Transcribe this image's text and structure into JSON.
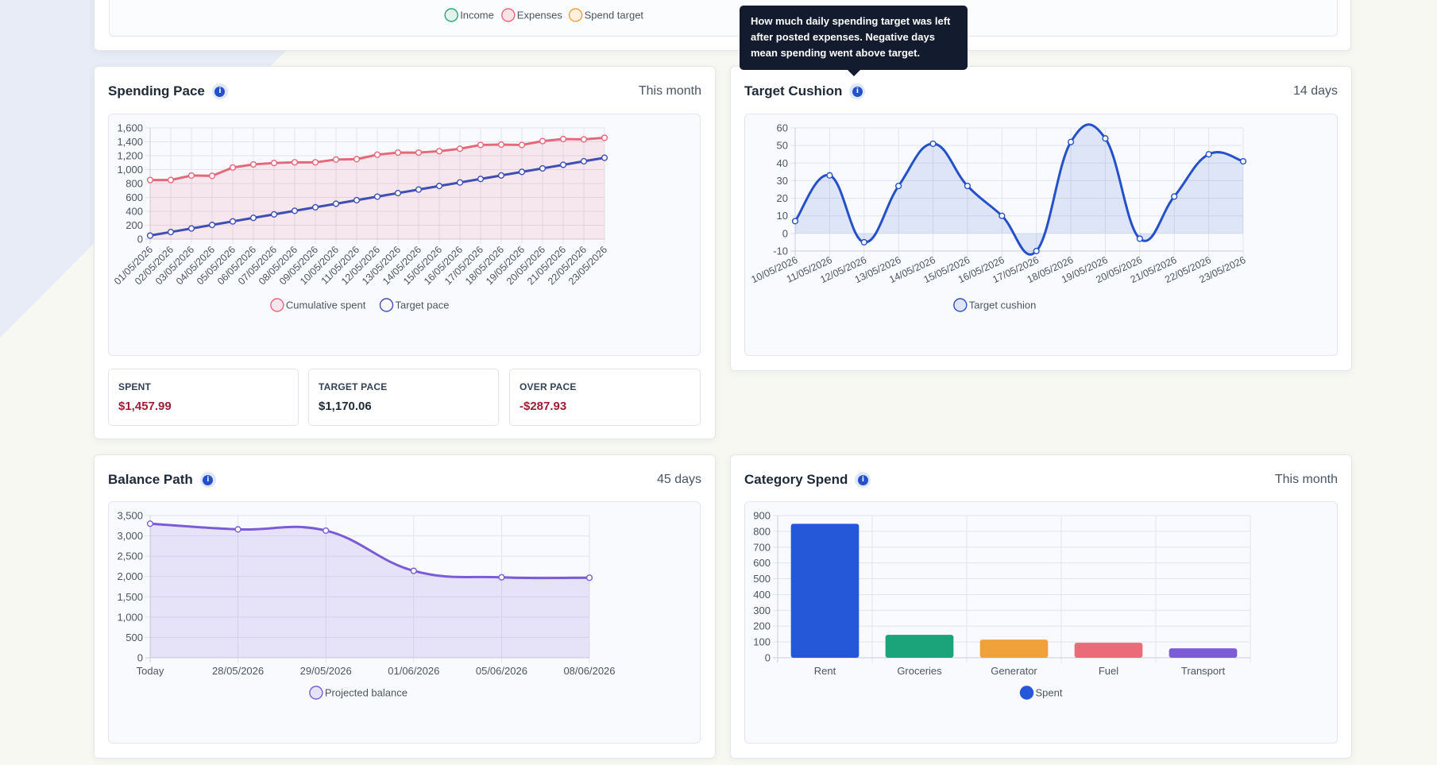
{
  "top_legend": [
    {
      "label": "Income",
      "color": "#2aa57a",
      "fill": "#e3f4ec"
    },
    {
      "label": "Expenses",
      "color": "#e5687a",
      "fill": "#fbe4e8"
    },
    {
      "label": "Spend target",
      "color": "#f0a23a",
      "fill": "#fdf0dd"
    }
  ],
  "tooltip": {
    "lines": [
      "How much daily spending target was left",
      "after posted expenses. Negative days",
      "mean spending went above target."
    ]
  },
  "spending_pace": {
    "title": "Spending Pace",
    "period": "This month",
    "info_icon": "info-icon",
    "stats": [
      {
        "label": "SPENT",
        "value": "$1,457.99",
        "color": "#9f1d35"
      },
      {
        "label": "TARGET PACE",
        "value": "$1,170.06",
        "color": "#1f2937"
      },
      {
        "label": "OVER PACE",
        "value": "-$287.93",
        "color": "#9f1d35"
      }
    ]
  },
  "target_cushion": {
    "title": "Target Cushion",
    "period": "14 days",
    "info_icon": "info-icon"
  },
  "balance_path": {
    "title": "Balance Path",
    "period": "45 days",
    "info_icon": "info-icon"
  },
  "category_spend": {
    "title": "Category Spend",
    "period": "This month",
    "info_icon": "info-icon"
  },
  "chart_data": [
    {
      "id": "spending-pace",
      "type": "line",
      "x": [
        "01/05/2026",
        "02/05/2026",
        "03/05/2026",
        "04/05/2026",
        "05/05/2026",
        "06/05/2026",
        "07/05/2026",
        "08/05/2026",
        "09/05/2026",
        "10/05/2026",
        "11/05/2026",
        "12/05/2026",
        "13/05/2026",
        "14/05/2026",
        "15/05/2026",
        "16/05/2026",
        "17/05/2026",
        "18/05/2026",
        "19/05/2026",
        "20/05/2026",
        "21/05/2026",
        "22/05/2026",
        "23/05/2026"
      ],
      "series": [
        {
          "name": "Cumulative spent",
          "color": "#e5687a",
          "fill": "rgba(229,104,122,0.13)",
          "values": [
            850,
            850,
            915,
            910,
            1030,
            1075,
            1095,
            1105,
            1105,
            1145,
            1150,
            1215,
            1245,
            1245,
            1265,
            1300,
            1355,
            1360,
            1355,
            1410,
            1440,
            1435,
            1458
          ]
        },
        {
          "name": "Target pace",
          "color": "#3e4fb3",
          "fill": "none",
          "values": [
            51,
            102,
            153,
            204,
            255,
            306,
            356,
            407,
            458,
            509,
            560,
            611,
            662,
            713,
            764,
            815,
            866,
            916,
            967,
            1018,
            1069,
            1120,
            1170
          ]
        }
      ],
      "ylim": [
        0,
        1600
      ],
      "yticks": [
        "0",
        "200",
        "400",
        "600",
        "800",
        "1,000",
        "1,200",
        "1,400",
        "1,600"
      ],
      "grid": true,
      "legend": "bottom"
    },
    {
      "id": "target-cushion",
      "type": "line",
      "x": [
        "10/05/2026",
        "11/05/2026",
        "12/05/2026",
        "13/05/2026",
        "14/05/2026",
        "15/05/2026",
        "16/05/2026",
        "17/05/2026",
        "18/05/2026",
        "19/05/2026",
        "20/05/2026",
        "21/05/2026",
        "22/05/2026",
        "23/05/2026"
      ],
      "series": [
        {
          "name": "Target cushion",
          "color": "#2451c9",
          "fill": "rgba(36,81,201,0.12)",
          "values": [
            7,
            33,
            -5,
            27,
            51,
            27,
            10,
            -10,
            52,
            54,
            -3,
            21,
            45,
            41
          ]
        }
      ],
      "ylim": [
        -10,
        60
      ],
      "yticks": [
        "-10",
        "0",
        "10",
        "20",
        "30",
        "40",
        "50",
        "60"
      ],
      "grid": true,
      "legend": "bottom"
    },
    {
      "id": "balance-path",
      "type": "area",
      "x": [
        "Today",
        "28/05/2026",
        "29/05/2026",
        "01/06/2026",
        "05/06/2026",
        "08/06/2026"
      ],
      "series": [
        {
          "name": "Projected balance",
          "color": "#7b5cd6",
          "fill": "rgba(123,92,214,0.14)",
          "values": [
            3300,
            3160,
            3130,
            2140,
            1980,
            1970
          ]
        }
      ],
      "ylim": [
        0,
        3500
      ],
      "yticks": [
        "0",
        "500",
        "1,000",
        "1,500",
        "2,000",
        "2,500",
        "3,000",
        "3,500"
      ],
      "grid": true,
      "legend": "bottom"
    },
    {
      "id": "category-spend",
      "type": "bar",
      "categories": [
        "Rent",
        "Groceries",
        "Generator",
        "Fuel",
        "Transport"
      ],
      "colors": [
        "#2558d8",
        "#1ba37a",
        "#f0a23a",
        "#ec6b78",
        "#7b5cd6"
      ],
      "series": [
        {
          "name": "Spent",
          "color": "#2558d8",
          "values": [
            848,
            145,
            115,
            95,
            60
          ]
        }
      ],
      "ylim": [
        0,
        900
      ],
      "yticks": [
        "0",
        "100",
        "200",
        "300",
        "400",
        "500",
        "600",
        "700",
        "800",
        "900"
      ],
      "grid": true,
      "legend": "bottom"
    }
  ]
}
